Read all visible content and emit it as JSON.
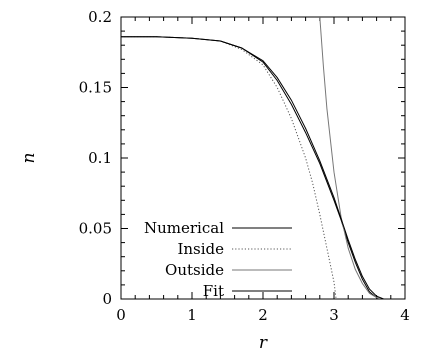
{
  "chart_data": {
    "type": "line",
    "xlabel": "r",
    "ylabel": "n",
    "xlim": [
      0,
      4
    ],
    "ylim": [
      0,
      0.2
    ],
    "x_ticks": [
      0,
      1,
      2,
      3,
      4
    ],
    "y_ticks": [
      0,
      0.05,
      0.1,
      0.15,
      0.2
    ],
    "x_tick_labels": [
      "0",
      "1",
      "2",
      "3",
      "4"
    ],
    "y_tick_labels": [
      "0",
      "0.05",
      "0.1",
      "0.15",
      "0.2"
    ],
    "legend_position": "bottom-left",
    "grid": false,
    "series": [
      {
        "name": "Numerical",
        "style": "solid",
        "color": "#000000",
        "x": [
          0,
          0.5,
          1.0,
          1.4,
          1.7,
          2.0,
          2.2,
          2.4,
          2.6,
          2.8,
          3.0,
          3.1,
          3.2,
          3.3,
          3.4,
          3.5,
          3.6,
          3.65
        ],
        "y": [
          0.186,
          0.186,
          0.185,
          0.183,
          0.178,
          0.168,
          0.155,
          0.138,
          0.118,
          0.096,
          0.07,
          0.056,
          0.04,
          0.026,
          0.014,
          0.005,
          0.001,
          0.0
        ]
      },
      {
        "name": "Inside",
        "style": "dotted",
        "color": "#555555",
        "x": [
          0,
          0.5,
          1.0,
          1.4,
          1.7,
          2.0,
          2.2,
          2.4,
          2.6,
          2.7,
          2.8,
          2.9,
          3.0,
          3.03
        ],
        "y": [
          0.186,
          0.186,
          0.185,
          0.183,
          0.177,
          0.166,
          0.15,
          0.128,
          0.1,
          0.082,
          0.06,
          0.036,
          0.012,
          0.0
        ]
      },
      {
        "name": "Outside",
        "style": "solid",
        "color": "#777777",
        "x": [
          2.8,
          2.85,
          2.9,
          3.0,
          3.1,
          3.2,
          3.3,
          3.4,
          3.5,
          3.6,
          3.65
        ],
        "y": [
          0.2,
          0.165,
          0.135,
          0.09,
          0.058,
          0.036,
          0.021,
          0.011,
          0.004,
          0.001,
          0.0
        ]
      },
      {
        "name": "Fit",
        "style": "solid",
        "color": "#000000",
        "x": [
          0,
          0.5,
          1.0,
          1.4,
          1.7,
          2.0,
          2.2,
          2.4,
          2.6,
          2.8,
          3.0,
          3.1,
          3.2,
          3.3,
          3.4,
          3.5,
          3.6,
          3.7
        ],
        "y": [
          0.186,
          0.186,
          0.185,
          0.183,
          0.178,
          0.169,
          0.157,
          0.141,
          0.121,
          0.098,
          0.072,
          0.057,
          0.042,
          0.028,
          0.016,
          0.007,
          0.002,
          0.0
        ]
      }
    ]
  }
}
